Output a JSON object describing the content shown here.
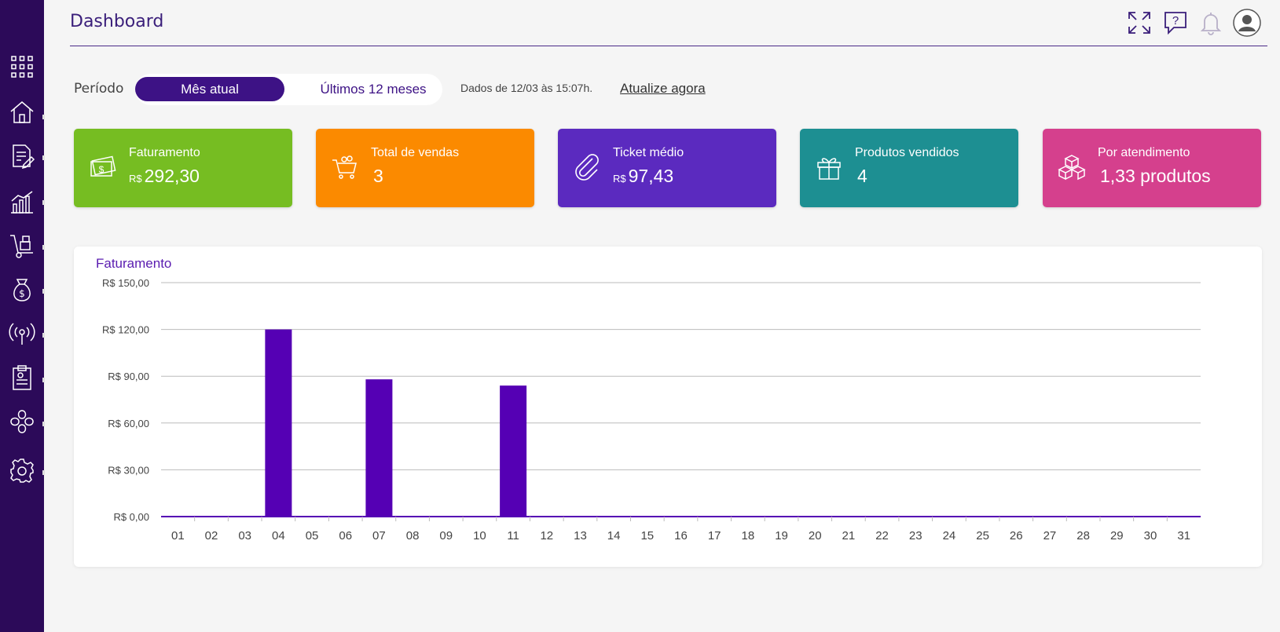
{
  "sidebar": {
    "items": [
      {
        "icon": "apps-grid-icon"
      },
      {
        "icon": "home-icon"
      },
      {
        "icon": "document-edit-icon"
      },
      {
        "icon": "bar-chart-icon"
      },
      {
        "icon": "hand-truck-icon"
      },
      {
        "icon": "money-bag-icon"
      },
      {
        "icon": "broadcast-icon"
      },
      {
        "icon": "clipboard-icon"
      },
      {
        "icon": "integration-icon"
      },
      {
        "icon": "settings-gear-icon"
      }
    ]
  },
  "header": {
    "title": "Dashboard",
    "icons": [
      "fullscreen-icon",
      "help-chat-icon",
      "bell-icon",
      "user-avatar-icon"
    ]
  },
  "period": {
    "label": "Período",
    "options": [
      "Mês atual",
      "Últimos 12 meses"
    ],
    "selected": "Mês atual",
    "updated_text": "Dados de 12/03 às 15:07h.",
    "refresh_link": "Atualize agora"
  },
  "cards": [
    {
      "label": "Faturamento",
      "currency": "R$",
      "value": "292,30",
      "color": "#76bd22",
      "icon": "money-icon"
    },
    {
      "label": "Total de vendas",
      "currency": "",
      "value": "3",
      "color": "#fb8a00",
      "icon": "shopping-cart-icon"
    },
    {
      "label": "Ticket médio",
      "currency": "R$",
      "value": "97,43",
      "color": "#5b2abf",
      "icon": "paperclip-icon"
    },
    {
      "label": "Produtos vendidos",
      "currency": "",
      "value": "4",
      "color": "#1d8f92",
      "icon": "gift-icon"
    },
    {
      "label": "Por atendimento",
      "currency": "",
      "value": "1,33 produtos",
      "color": "#d5408d",
      "icon": "boxes-icon"
    }
  ],
  "chart_data": {
    "type": "bar",
    "title": "Faturamento",
    "categories": [
      "01",
      "02",
      "03",
      "04",
      "05",
      "06",
      "07",
      "08",
      "09",
      "10",
      "11",
      "12",
      "13",
      "14",
      "15",
      "16",
      "17",
      "18",
      "19",
      "20",
      "21",
      "22",
      "23",
      "24",
      "25",
      "26",
      "27",
      "28",
      "29",
      "30",
      "31"
    ],
    "values": [
      0,
      0,
      0,
      120,
      0,
      0,
      88,
      0,
      0,
      0,
      84,
      0,
      0,
      0,
      0,
      0,
      0,
      0,
      0,
      0,
      0,
      0,
      0,
      0,
      0,
      0,
      0,
      0,
      0,
      0,
      0
    ],
    "ylim": [
      0,
      150
    ],
    "yticks": [
      0,
      30,
      60,
      90,
      120,
      150
    ],
    "ytick_labels": [
      "R$ 0,00",
      "R$ 30,00",
      "R$ 60,00",
      "R$ 90,00",
      "R$ 120,00",
      "R$ 150,00"
    ],
    "bar_color": "#5500b4",
    "grid": true,
    "legend": "none"
  }
}
